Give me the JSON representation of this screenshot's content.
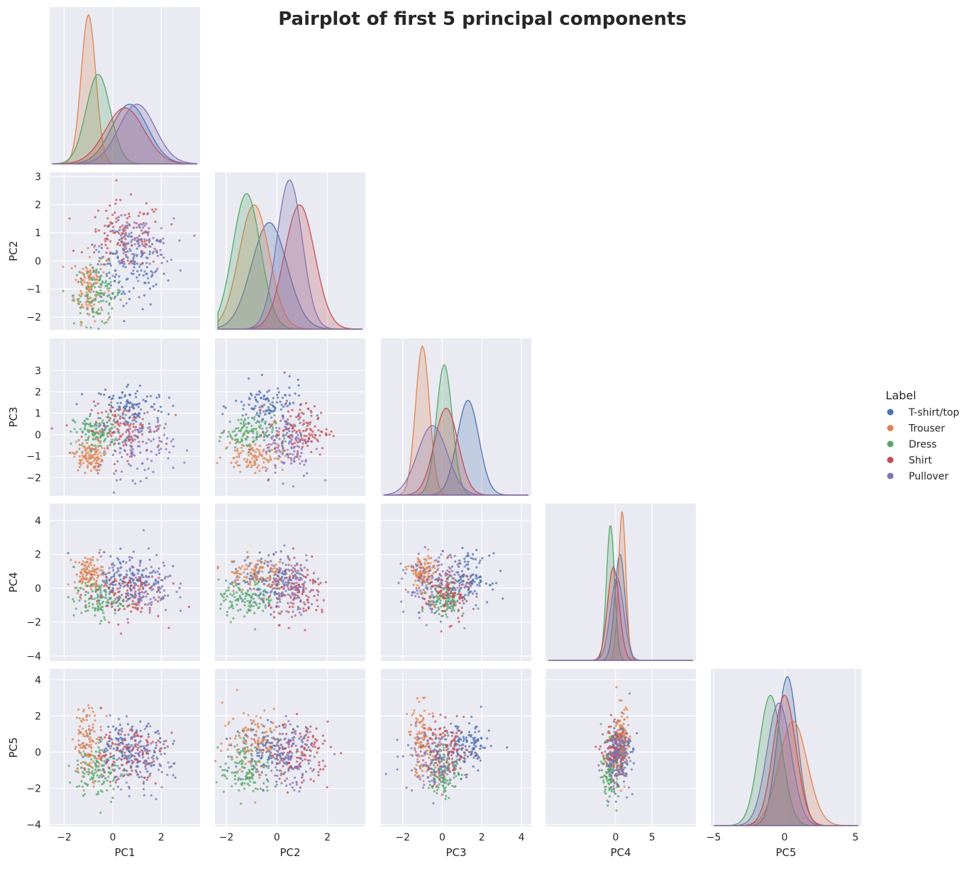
{
  "chart_data": {
    "type": "scatter",
    "title": "Pairplot of first 5 principal components",
    "variables": [
      "PC1",
      "PC2",
      "PC3",
      "PC4",
      "PC5"
    ],
    "corner": true,
    "diagonal": "kde",
    "legend": {
      "title": "Label",
      "placement": "right",
      "items": [
        "T-shirt/top",
        "Trouser",
        "Dress",
        "Shirt",
        "Pullover"
      ]
    },
    "colors": {
      "T-shirt/top": "#4c72b0",
      "Trouser": "#dd8452",
      "Dress": "#55a868",
      "Shirt": "#c44e52",
      "Pullover": "#8172b3"
    },
    "ranges": {
      "PC1": [
        -2.6,
        3.6
      ],
      "PC2": [
        -2.45,
        3.15
      ],
      "PC3": [
        -2.85,
        4.5
      ],
      "PC4": [
        -4.3,
        5.0
      ],
      "PC5": [
        -4.1,
        4.6
      ]
    },
    "ticks": {
      "PC1": [
        -2,
        0,
        2
      ],
      "PC2": [
        -2,
        0,
        2
      ],
      "PC3": [
        -2,
        0,
        2,
        4
      ],
      "PC4": [
        -4,
        -2,
        0,
        2,
        4
      ],
      "PC5": [
        -4,
        -2,
        0,
        2,
        4
      ]
    },
    "x_ticks": {
      "PC1": [
        -2,
        0,
        2
      ],
      "PC2": [
        -2,
        0,
        2
      ],
      "PC3": [
        -2,
        0,
        2,
        4
      ],
      "PC4": [
        0,
        5
      ],
      "PC5": [
        -5,
        0,
        5
      ]
    },
    "y_ticks": {
      "PC2": [
        -2,
        -1,
        0,
        1,
        2,
        3
      ],
      "PC3": [
        -2,
        -1,
        0,
        1,
        2,
        3
      ],
      "PC4": [
        -4,
        -2,
        0,
        2,
        4
      ],
      "PC5": [
        -4,
        -2,
        0,
        2,
        4
      ]
    },
    "x_view": {
      "PC1": [
        -2.6,
        3.6
      ],
      "PC2": [
        -2.45,
        3.5
      ],
      "PC3": [
        -3.1,
        4.5
      ],
      "PC4": [
        -9.6,
        11.0
      ],
      "PC5": [
        -5.2,
        5.4
      ]
    },
    "class_means": {
      "T-shirt/top": [
        0.7,
        -0.3,
        1.3,
        0.6,
        0.2
      ],
      "Trouser": [
        -1.0,
        -0.9,
        -1.0,
        0.9,
        0.6
      ],
      "Dress": [
        -0.6,
        -1.2,
        0.1,
        -0.7,
        -1.0
      ],
      "Shirt": [
        0.5,
        0.9,
        0.2,
        -0.3,
        0.0
      ],
      "Pullover": [
        1.0,
        0.5,
        -0.5,
        0.2,
        -0.4
      ]
    },
    "class_stds": {
      "T-shirt/top": [
        0.75,
        0.7,
        0.55,
        0.7,
        0.7
      ],
      "Trouser": [
        0.3,
        0.6,
        0.35,
        0.5,
        1.0
      ],
      "Dress": [
        0.5,
        0.55,
        0.4,
        0.55,
        0.8
      ],
      "Shirt": [
        0.8,
        0.6,
        0.6,
        0.8,
        0.8
      ],
      "Pullover": [
        0.75,
        0.5,
        0.75,
        0.9,
        0.85
      ]
    }
  }
}
